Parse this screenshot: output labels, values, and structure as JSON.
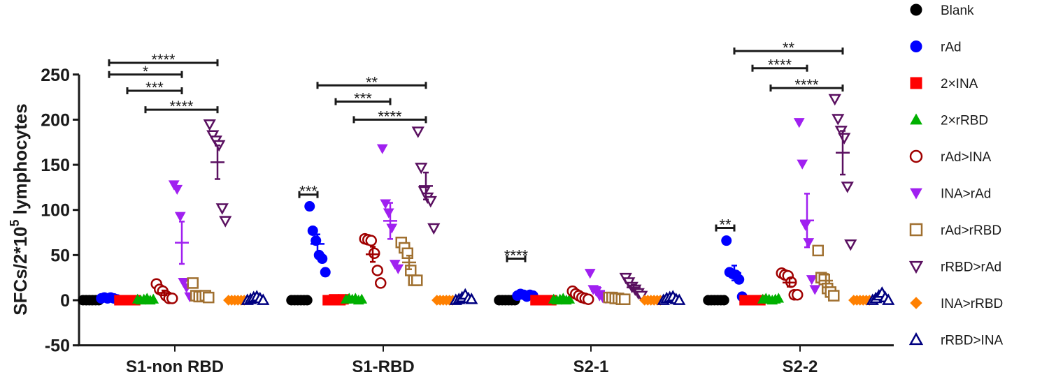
{
  "chart_data": {
    "type": "scatter",
    "title": "",
    "xlabel": "",
    "ylabel_prefix": "SFCs/2*10",
    "ylabel_sup": "5",
    "ylabel_suffix": " lymphocytes",
    "ylim": [
      -50,
      250
    ],
    "yticks": [
      -50,
      0,
      50,
      100,
      150,
      200,
      250
    ],
    "ytick_labels": [
      "-50",
      "0",
      "50",
      "100",
      "150",
      "200",
      "250"
    ],
    "grid": false,
    "legend_position": "right",
    "categories": [
      "S1-non RBD",
      "S1-RBD",
      "S2-1",
      "S2-2"
    ],
    "series": [
      {
        "name": "Blank",
        "color": "#000000",
        "marker": "circle",
        "filled": true,
        "values": [
          [
            0,
            0,
            0,
            0,
            0,
            0
          ],
          [
            0,
            0,
            0,
            0,
            0,
            0
          ],
          [
            0,
            0,
            0,
            0,
            0,
            0
          ],
          [
            0,
            0,
            0,
            0,
            0,
            0
          ]
        ]
      },
      {
        "name": "rAd",
        "color": "#0000ff",
        "marker": "circle",
        "filled": true,
        "values": [
          [
            2,
            3,
            2,
            3,
            2,
            1
          ],
          [
            104,
            77,
            66,
            50,
            46,
            31
          ],
          [
            5,
            7,
            6,
            4,
            6,
            5
          ],
          [
            66,
            31,
            29,
            28,
            23,
            4
          ]
        ]
      },
      {
        "name": "2×INA",
        "color": "#ff0000",
        "marker": "square",
        "filled": true,
        "values": [
          [
            0,
            0,
            0,
            0,
            0,
            0
          ],
          [
            0,
            0,
            1,
            0,
            0,
            1
          ],
          [
            0,
            0,
            0,
            0,
            0,
            0
          ],
          [
            0,
            0,
            0,
            0,
            0,
            0
          ]
        ]
      },
      {
        "name": "2×rRBD",
        "color": "#00b000",
        "marker": "triangle-up",
        "filled": true,
        "values": [
          [
            1,
            0,
            1,
            2,
            0,
            1
          ],
          [
            1,
            2,
            1,
            2,
            0,
            1
          ],
          [
            1,
            0,
            1,
            2,
            0,
            1
          ],
          [
            1,
            2,
            1,
            0,
            1,
            2
          ]
        ]
      },
      {
        "name": "rAd>INA",
        "color": "#a00000",
        "marker": "circle",
        "filled": false,
        "values": [
          [
            18,
            12,
            10,
            5,
            2,
            2
          ],
          [
            68,
            67,
            66,
            52,
            33,
            19
          ],
          [
            10,
            7,
            5,
            3,
            2,
            1
          ],
          [
            30,
            28,
            27,
            20,
            6,
            6
          ]
        ]
      },
      {
        "name": "INA>rAd",
        "color": "#a020f0",
        "marker": "triangle-down",
        "filled": true,
        "values": [
          [
            128,
            123,
            93,
            20,
            14,
            4
          ],
          [
            168,
            107,
            97,
            80,
            40,
            35
          ],
          [
            30,
            12,
            10,
            5,
            3,
            2
          ],
          [
            197,
            151,
            83,
            64,
            23,
            12
          ]
        ]
      },
      {
        "name": "rAd>rRBD",
        "color": "#a07030",
        "marker": "square",
        "filled": false,
        "values": [
          [
            19,
            5,
            4,
            4,
            5,
            3
          ],
          [
            64,
            58,
            52,
            33,
            22,
            22
          ],
          [
            3,
            3,
            2,
            2,
            1,
            1
          ],
          [
            55,
            25,
            23,
            13,
            9,
            5
          ]
        ]
      },
      {
        "name": "rRBD>rAd",
        "color": "#5a1060",
        "marker": "triangle-down",
        "filled": false,
        "values": [
          [
            195,
            183,
            177,
            172,
            102,
            88
          ],
          [
            187,
            147,
            121,
            114,
            110,
            80
          ],
          [
            25,
            20,
            15,
            12,
            8,
            5
          ],
          [
            223,
            201,
            188,
            180,
            126,
            62
          ]
        ]
      },
      {
        "name": "INA>rRBD",
        "color": "#ff8000",
        "marker": "diamond",
        "filled": true,
        "values": [
          [
            0,
            0,
            0,
            0,
            0,
            0
          ],
          [
            0,
            0,
            0,
            0,
            0,
            0
          ],
          [
            0,
            0,
            0,
            0,
            0,
            0
          ],
          [
            0,
            0,
            0,
            0,
            0,
            0
          ]
        ]
      },
      {
        "name": "rRBD>INA",
        "color": "#000080",
        "marker": "triangle-up",
        "filled": false,
        "values": [
          [
            0,
            1,
            3,
            4,
            2,
            0
          ],
          [
            0,
            1,
            3,
            6,
            2,
            1
          ],
          [
            0,
            2,
            3,
            4,
            1,
            0
          ],
          [
            0,
            2,
            5,
            8,
            3,
            0
          ]
        ]
      }
    ],
    "error_bars": "mean ± SEM",
    "significance": [
      {
        "category": 0,
        "from": "rAd",
        "to": "rRBD>rAd",
        "level": 263,
        "label": "****"
      },
      {
        "category": 0,
        "from": "rAd",
        "to": "INA>rAd",
        "level": 250,
        "label": "*"
      },
      {
        "category": 0,
        "from": "2×INA",
        "to": "INA>rAd",
        "level": 232,
        "label": "***"
      },
      {
        "category": 0,
        "from": "2×rRBD",
        "to": "rRBD>rAd",
        "level": 211,
        "label": "****"
      },
      {
        "category": 1,
        "from": "Blank",
        "to": "rAd",
        "level": 117,
        "label": "***"
      },
      {
        "category": 1,
        "from": "rAd",
        "to": "rRBD>rAd",
        "level": 238,
        "label": "**"
      },
      {
        "category": 1,
        "from": "2×INA",
        "to": "INA>rAd",
        "level": 220,
        "label": "***"
      },
      {
        "category": 1,
        "from": "2×rRBD",
        "to": "rRBD>rAd",
        "level": 200,
        "label": "****"
      },
      {
        "category": 2,
        "from": "Blank",
        "to": "rAd",
        "level": 46,
        "label": "****"
      },
      {
        "category": 3,
        "from": "Blank",
        "to": "rAd",
        "level": 80,
        "label": "**"
      },
      {
        "category": 3,
        "from": "rAd",
        "to": "rRBD>rAd",
        "level": 276,
        "label": "**"
      },
      {
        "category": 3,
        "from": "2×INA",
        "to": "INA>rAd",
        "level": 257,
        "label": "****"
      },
      {
        "category": 3,
        "from": "2×rRBD",
        "to": "rRBD>rAd",
        "level": 235,
        "label": "****"
      }
    ]
  }
}
